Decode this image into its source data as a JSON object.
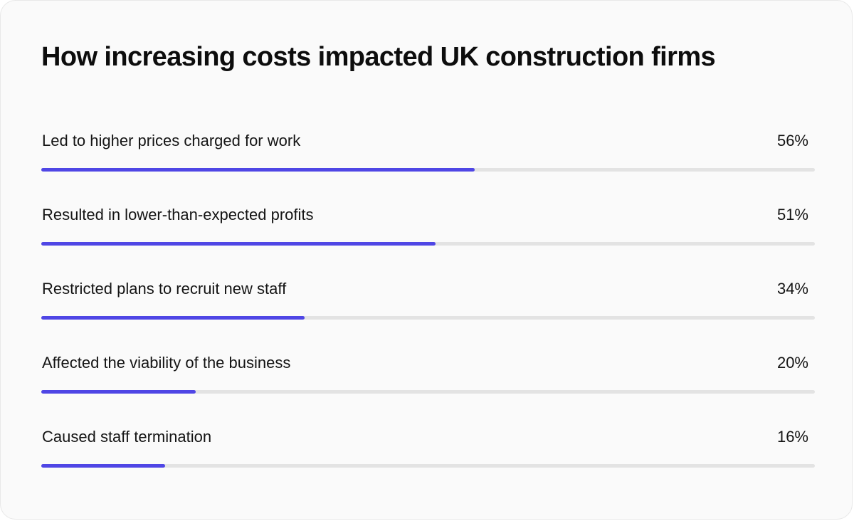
{
  "colors": {
    "bar": "#4f46e5",
    "track": "#e3e3e3",
    "background": "#fafafa",
    "text": "#141414"
  },
  "chart_data": {
    "type": "bar",
    "orientation": "horizontal",
    "title": "How increasing costs impacted UK construction firms",
    "xlim": [
      0,
      100
    ],
    "unit": "%",
    "grid": false,
    "legend": "none",
    "categories": [
      "Led to higher prices charged for work",
      "Resulted in lower-than-expected profits",
      "Restricted plans to recruit new staff",
      "Affected the viability of the business",
      "Caused staff termination"
    ],
    "values": [
      56,
      51,
      34,
      20,
      16
    ],
    "value_labels": [
      "56%",
      "51%",
      "34%",
      "20%",
      "16%"
    ]
  }
}
